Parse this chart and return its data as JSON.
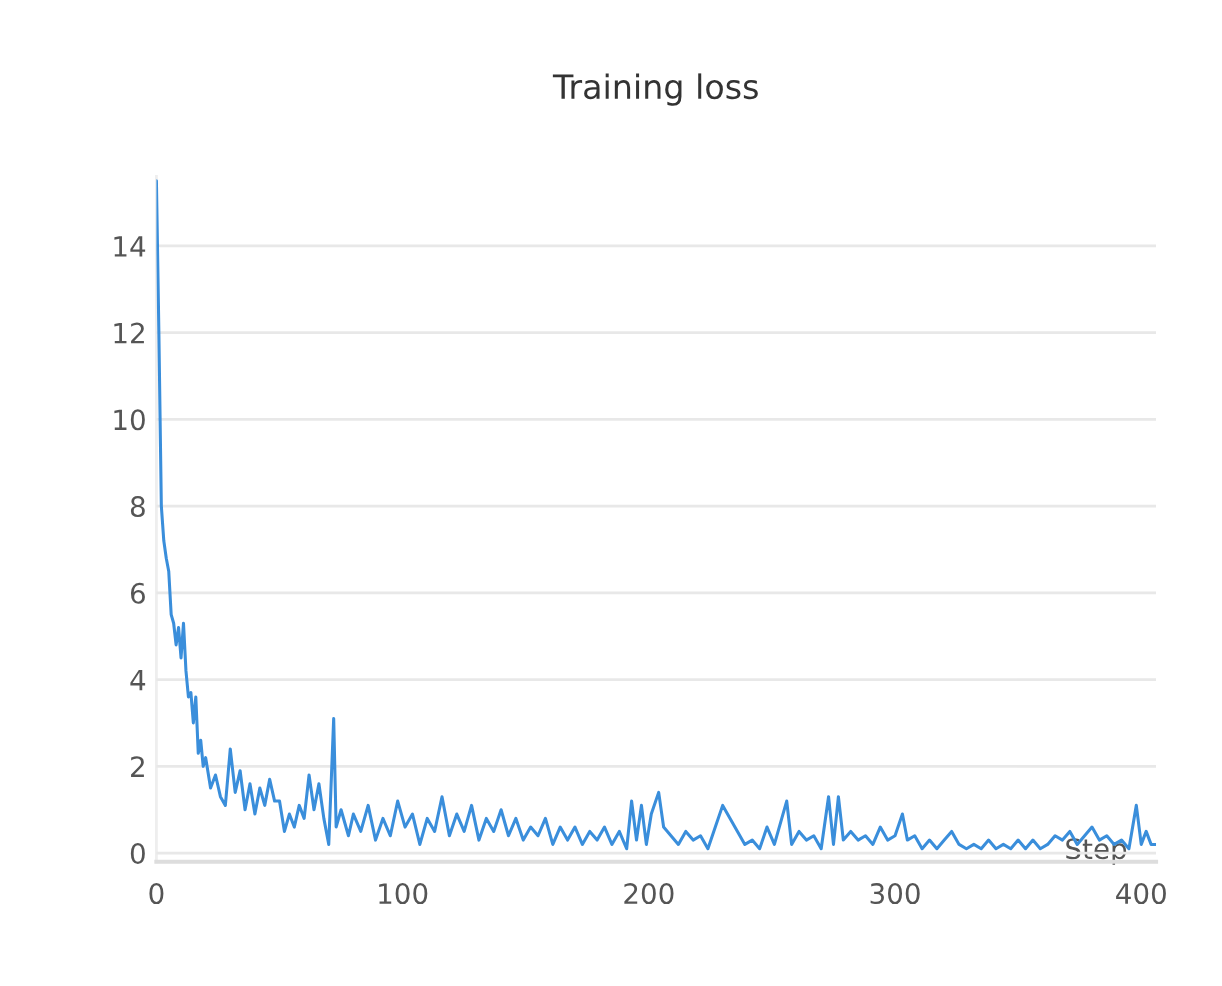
{
  "chart_data": {
    "type": "line",
    "title": "Training loss",
    "xlabel": "Step",
    "x": [
      0,
      1,
      2,
      3,
      4,
      5,
      6,
      7,
      8,
      9,
      10,
      11,
      12,
      13,
      14,
      15,
      16,
      17,
      18,
      19,
      20,
      22,
      24,
      26,
      28,
      30,
      32,
      34,
      36,
      38,
      40,
      42,
      44,
      46,
      48,
      50,
      52,
      54,
      56,
      58,
      60,
      62,
      64,
      66,
      68,
      70,
      72,
      73,
      75,
      78,
      80,
      83,
      86,
      89,
      92,
      95,
      98,
      101,
      104,
      107,
      110,
      113,
      116,
      119,
      122,
      125,
      128,
      131,
      134,
      137,
      140,
      143,
      146,
      149,
      152,
      155,
      158,
      161,
      164,
      167,
      170,
      173,
      176,
      179,
      182,
      185,
      188,
      191,
      193,
      195,
      197,
      199,
      201,
      204,
      206,
      209,
      212,
      215,
      218,
      221,
      224,
      227,
      230,
      233,
      236,
      239,
      242,
      245,
      248,
      251,
      254,
      256,
      258,
      261,
      264,
      267,
      270,
      273,
      275,
      277,
      279,
      282,
      285,
      288,
      291,
      294,
      297,
      300,
      303,
      305,
      308,
      311,
      314,
      317,
      320,
      323,
      326,
      329,
      332,
      335,
      338,
      341,
      344,
      347,
      350,
      353,
      356,
      359,
      362,
      365,
      368,
      371,
      374,
      377,
      380,
      383,
      386,
      389,
      392,
      395,
      398,
      400,
      402,
      404,
      406
    ],
    "series": [
      {
        "color": "#3a8edb",
        "values": [
          15.5,
          12,
          8,
          7.2,
          6.8,
          6.5,
          5.5,
          5.3,
          4.8,
          5.2,
          4.5,
          5.3,
          4.2,
          3.6,
          3.7,
          3.0,
          3.6,
          2.3,
          2.6,
          2.0,
          2.2,
          1.5,
          1.8,
          1.3,
          1.1,
          2.4,
          1.4,
          1.9,
          1.0,
          1.6,
          0.9,
          1.5,
          1.1,
          1.7,
          1.2,
          1.2,
          0.5,
          0.9,
          0.6,
          1.1,
          0.8,
          1.8,
          1.0,
          1.6,
          0.8,
          0.2,
          3.1,
          0.6,
          1.0,
          0.4,
          0.9,
          0.5,
          1.1,
          0.3,
          0.8,
          0.4,
          1.2,
          0.6,
          0.9,
          0.2,
          0.8,
          0.5,
          1.3,
          0.4,
          0.9,
          0.5,
          1.1,
          0.3,
          0.8,
          0.5,
          1.0,
          0.4,
          0.8,
          0.3,
          0.6,
          0.4,
          0.8,
          0.2,
          0.6,
          0.3,
          0.6,
          0.2,
          0.5,
          0.3,
          0.6,
          0.2,
          0.5,
          0.1,
          1.2,
          0.3,
          1.1,
          0.2,
          0.9,
          1.4,
          0.6,
          0.4,
          0.2,
          0.5,
          0.3,
          0.4,
          0.1,
          0.6,
          1.1,
          0.8,
          0.5,
          0.2,
          0.3,
          0.1,
          0.6,
          0.2,
          0.8,
          1.2,
          0.2,
          0.5,
          0.3,
          0.4,
          0.1,
          1.3,
          0.2,
          1.3,
          0.3,
          0.5,
          0.3,
          0.4,
          0.2,
          0.6,
          0.3,
          0.4,
          0.9,
          0.3,
          0.4,
          0.1,
          0.3,
          0.1,
          0.3,
          0.5,
          0.2,
          0.1,
          0.2,
          0.1,
          0.3,
          0.1,
          0.2,
          0.1,
          0.3,
          0.1,
          0.3,
          0.1,
          0.2,
          0.4,
          0.3,
          0.5,
          0.2,
          0.4,
          0.6,
          0.3,
          0.4,
          0.2,
          0.3,
          0.1,
          1.1,
          0.2,
          0.5,
          0.2,
          0.2
        ]
      }
    ],
    "xlim": [
      0,
      406
    ],
    "xticks": [
      0,
      100,
      200,
      300,
      400
    ],
    "ylim": [
      -0.2,
      15.6
    ],
    "yticks": [
      0,
      2,
      4,
      6,
      8,
      10,
      12,
      14
    ],
    "grid": "y",
    "legend": false,
    "marker": "none",
    "line_style": "solid"
  }
}
